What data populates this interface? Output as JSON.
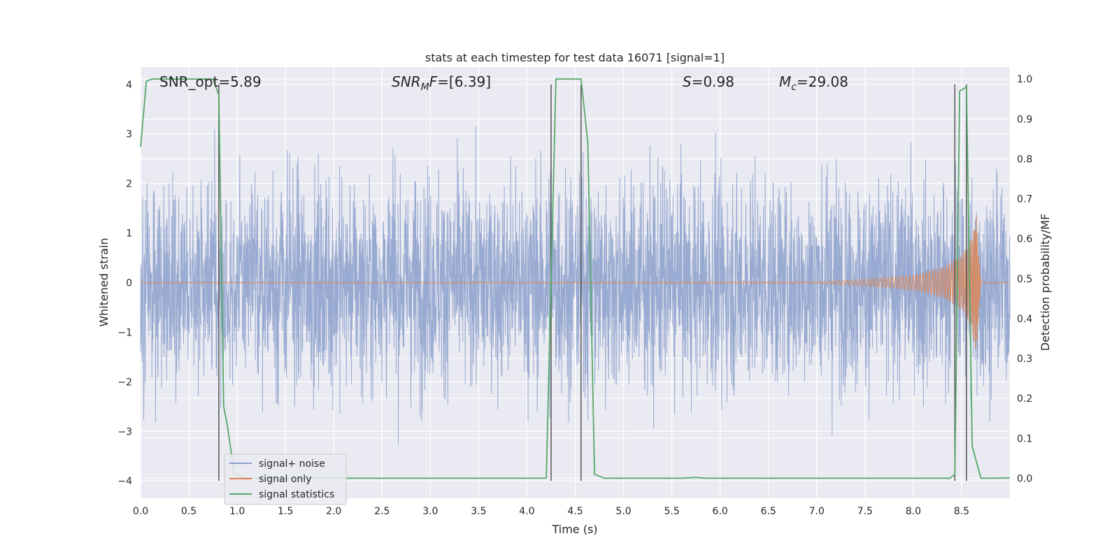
{
  "chart_data": {
    "type": "line",
    "title": "stats at each timestep for test data 16071 [signal=1]",
    "xlabel": "Time (s)",
    "ylabel_left": "Whitened strain",
    "ylabel_right": "Detection probability/MF",
    "xlim": [
      0,
      9.0
    ],
    "ylim_left": [
      -4.35,
      4.35
    ],
    "ylim_right": [
      -0.05,
      1.03
    ],
    "x_ticks": [
      "0.0",
      "0.5",
      "1.0",
      "1.5",
      "2.0",
      "2.5",
      "3.0",
      "3.5",
      "4.0",
      "4.5",
      "5.0",
      "5.5",
      "6.0",
      "6.5",
      "7.0",
      "7.5",
      "8.0",
      "8.5"
    ],
    "y_ticks_left": [
      "−4",
      "−3",
      "−2",
      "−1",
      "0",
      "1",
      "2",
      "3",
      "4"
    ],
    "y_ticks_right": [
      "0.0",
      "0.1",
      "0.2",
      "0.3",
      "0.4",
      "0.5",
      "0.6",
      "0.7",
      "0.8",
      "0.9",
      "1.0"
    ],
    "grid": true,
    "legend_position": "lower-left",
    "annotations": [
      {
        "text": "SNR_opt=5.89",
        "x": 0.2
      },
      {
        "text": "SNRMF=[6.39]",
        "x": 2.6
      },
      {
        "text": "S=0.98",
        "x": 5.6
      },
      {
        "text": "Mc=29.08",
        "x": 6.6
      }
    ],
    "vertical_lines_x": [
      0.81,
      4.25,
      4.56,
      8.43,
      8.55
    ],
    "series": [
      {
        "name": "signal+ noise",
        "color": "#8a9fcb",
        "axis": "left",
        "description_values": "white noise, typical amplitude ±1.7, peaks to ±3.5",
        "sample_seed": 16071,
        "x_range": [
          0,
          9.0
        ]
      },
      {
        "name": "signal only",
        "color": "#dd8452",
        "axis": "left",
        "x": [
          0.0,
          7.0,
          7.5,
          8.0,
          8.3,
          8.5,
          8.6,
          8.65,
          8.7
        ],
        "envelope": [
          0.0,
          0.02,
          0.07,
          0.15,
          0.3,
          0.55,
          0.9,
          1.4,
          0.0
        ]
      },
      {
        "name": "signal statistics",
        "color": "#55a868",
        "axis": "right",
        "x": [
          0.0,
          0.06,
          0.12,
          0.2,
          0.5,
          0.75,
          0.81,
          0.86,
          0.9,
          0.97,
          1.1,
          4.0,
          4.2,
          4.3,
          4.56,
          4.63,
          4.7,
          4.8,
          5.6,
          5.75,
          5.85,
          6.5,
          8.38,
          8.43,
          8.48,
          8.55,
          8.61,
          8.7,
          8.8,
          9.0
        ],
        "y": [
          0.83,
          0.995,
          1.0,
          1.0,
          1.0,
          1.0,
          0.96,
          0.18,
          0.13,
          0.01,
          0.0,
          0.0,
          0.0,
          1.0,
          1.0,
          0.84,
          0.01,
          0.0,
          0.0,
          0.002,
          0.0,
          0.0,
          0.0,
          0.01,
          0.97,
          0.98,
          0.08,
          0.0,
          0.0,
          0.001
        ]
      }
    ]
  }
}
